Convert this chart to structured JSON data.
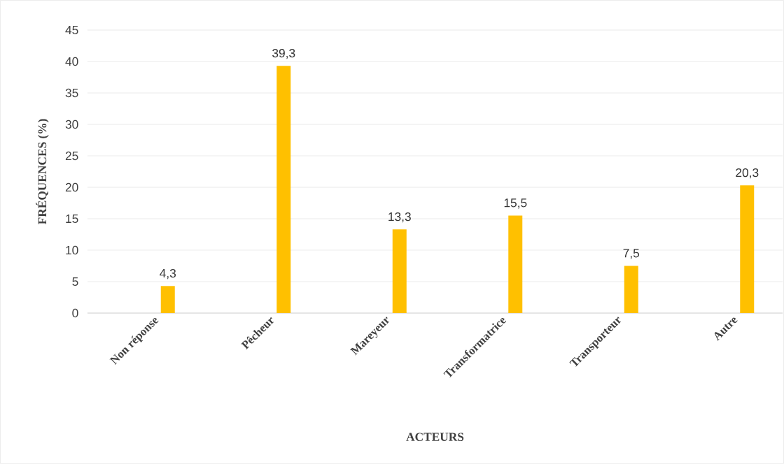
{
  "chart_data": {
    "type": "bar",
    "xlabel": "ACTEURS",
    "ylabel": "FRÉQUENCES (%)",
    "categories": [
      "Non réponse",
      "Pêcheur",
      "Mareyeur",
      "Transformatrice",
      "Transporteur",
      "Autre"
    ],
    "values": [
      4.3,
      39.3,
      13.3,
      15.5,
      7.5,
      20.3
    ],
    "value_labels": [
      "4,3",
      "39,3",
      "13,3",
      "15,5",
      "7,5",
      "20,3"
    ],
    "color": "#ffc000",
    "ylim": [
      0,
      45
    ],
    "yticks": [
      0,
      5,
      10,
      15,
      20,
      25,
      30,
      35,
      40,
      45
    ],
    "grid": "y"
  }
}
